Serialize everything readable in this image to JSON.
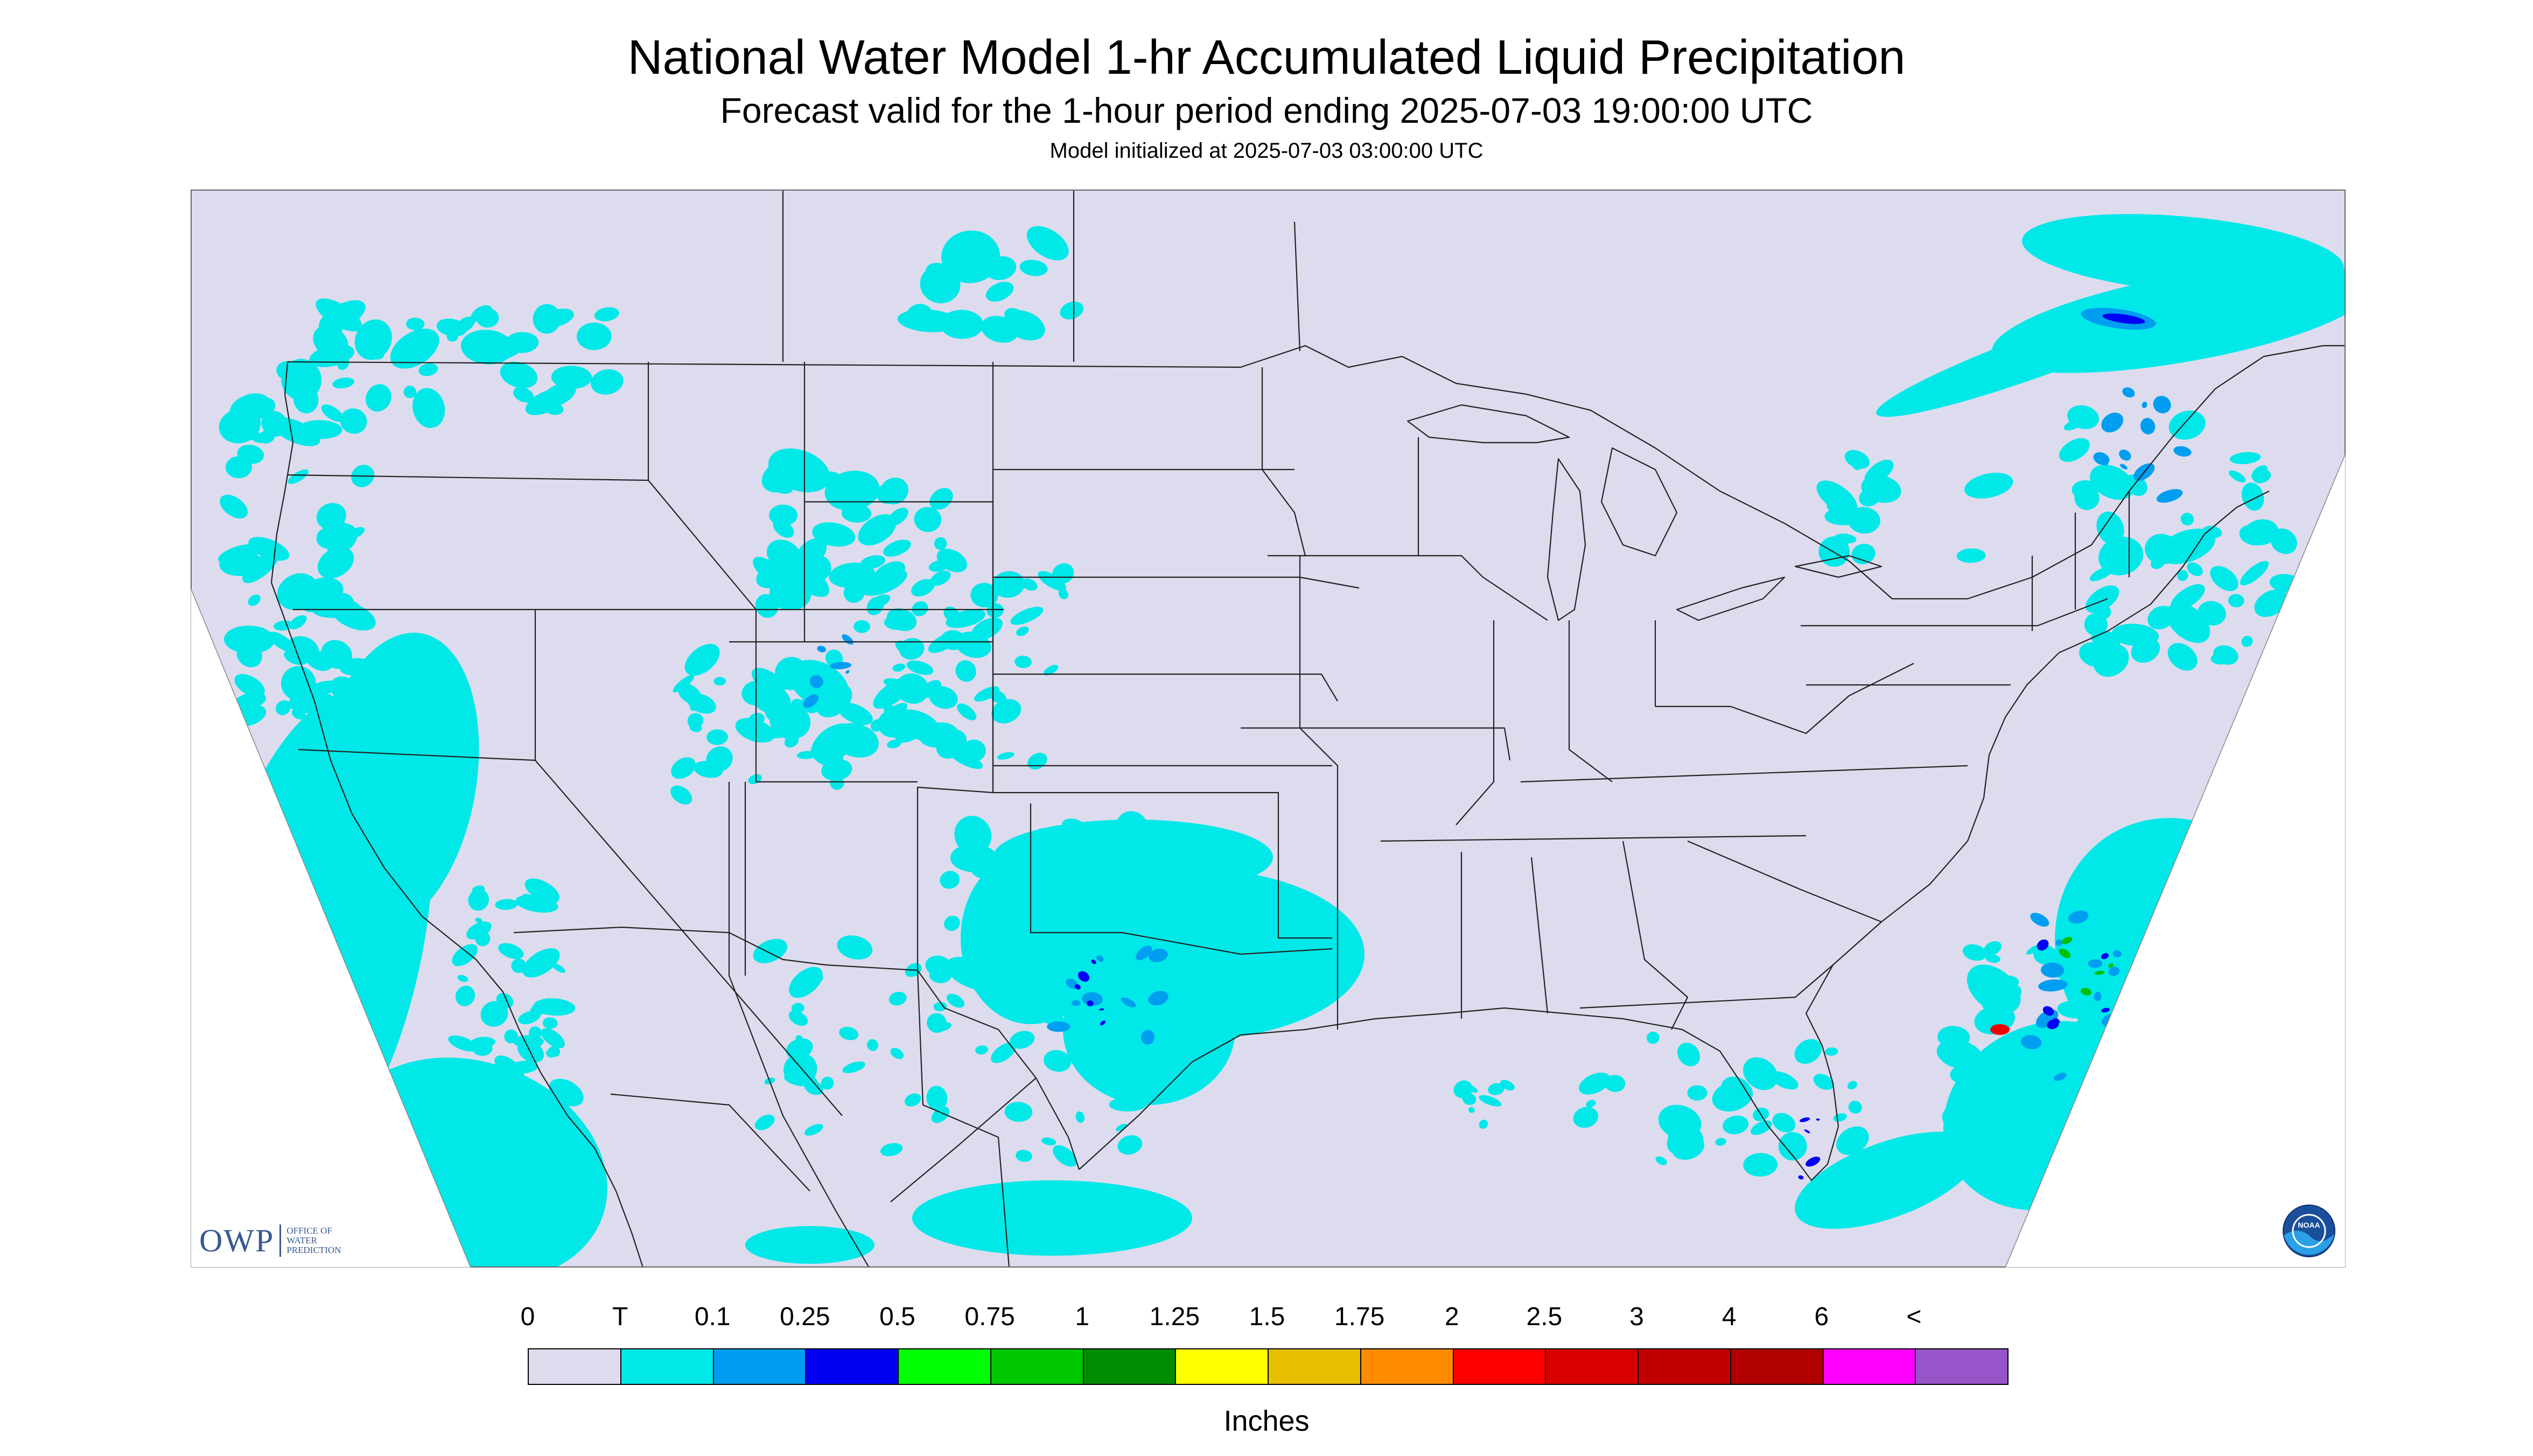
{
  "header": {
    "title": "National Water Model 1-hr Accumulated Liquid Precipitation",
    "subtitle": "Forecast valid for the 1-hour period ending 2025-07-03 19:00:00 UTC",
    "init": "Model initialized at 2025-07-03 03:00:00 UTC"
  },
  "logos": {
    "owp_main": "OWP",
    "owp_sub": [
      "OFFICE OF",
      "WATER",
      "PREDICTION"
    ],
    "noaa": "NOAA"
  },
  "map": {
    "background_color": "#dcdcee",
    "boundary_color": "#222222",
    "precip_colors": {
      "trace": "#00e8e8",
      "light": "#009ef0",
      "moderate": "#0000f5",
      "heavy": "#00c000",
      "very_heavy": "#f00000"
    }
  },
  "legend": {
    "labels": [
      "0",
      "T",
      "0.1",
      "0.25",
      "0.5",
      "0.75",
      "1",
      "1.25",
      "1.5",
      "1.75",
      "2",
      "2.5",
      "3",
      "4",
      "6",
      "<"
    ],
    "colors": [
      "#dcdcee",
      "#00e8e8",
      "#009ef0",
      "#0000f5",
      "#00ff00",
      "#00c800",
      "#008c00",
      "#ffff00",
      "#e6c000",
      "#ff8c00",
      "#ff0000",
      "#d80000",
      "#c00000",
      "#b00000",
      "#ff00ff",
      "#9655c8"
    ],
    "units": "Inches"
  }
}
